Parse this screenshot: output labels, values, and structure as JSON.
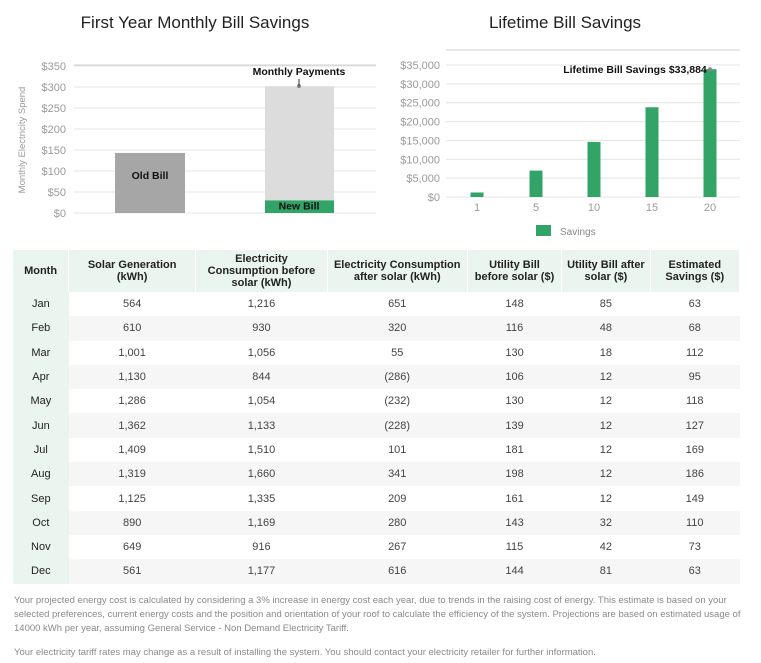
{
  "charts": {
    "left_title": "First Year Monthly Bill Savings",
    "right_title": "Lifetime Bill Savings"
  },
  "chart_data": [
    {
      "type": "bar",
      "title": "First Year Monthly Bill Savings",
      "ylabel": "Monthly Electricity Spend",
      "ylim": [
        0,
        350
      ],
      "yticks": [
        "$0",
        "$50",
        "$100",
        "$150",
        "$200",
        "$250",
        "$300",
        "$350"
      ],
      "ytick_values": [
        0,
        50,
        100,
        150,
        200,
        250,
        300,
        350
      ],
      "grid": true,
      "categories": [
        "Old Bill",
        "New Bill"
      ],
      "values": [
        143,
        30
      ],
      "stacked_top": {
        "category": "New Bill",
        "value": 302
      },
      "annotations": [
        {
          "text": "Monthly Payments",
          "x": "New Bill",
          "y": 302
        }
      ],
      "colors": {
        "old_bill": "#a6a6a6",
        "new_bill": "#33a467",
        "payments": "#dcdcdc"
      }
    },
    {
      "type": "bar",
      "title": "Lifetime Bill Savings",
      "ylim": [
        0,
        35000
      ],
      "yticks": [
        "$0",
        "$5,000",
        "$10,000",
        "$15,000",
        "$20,000",
        "$25,000",
        "$30,000",
        "$35,000"
      ],
      "ytick_values": [
        0,
        5000,
        10000,
        15000,
        20000,
        25000,
        30000,
        35000
      ],
      "grid": true,
      "categories": [
        "1",
        "5",
        "10",
        "15",
        "20"
      ],
      "series": [
        {
          "name": "Savings",
          "values": [
            1200,
            7000,
            14600,
            23800,
            33884
          ]
        }
      ],
      "annotations": [
        {
          "text": "Lifetime Bill Savings $33,884",
          "x": "20",
          "y": 33884
        }
      ],
      "legend": "bottom",
      "color": "#33a467"
    },
    {
      "type": "table",
      "headers": [
        "Month",
        "Solar Generation (kWh)",
        "Electricity Consumption before solar (kWh)",
        "Electricity Consumption after solar (kWh)",
        "Utility Bill before solar ($)",
        "Utility Bill after solar ($)",
        "Estimated Savings ($)"
      ],
      "rows": [
        [
          "Jan",
          "564",
          "1,216",
          "651",
          "148",
          "85",
          "63"
        ],
        [
          "Feb",
          "610",
          "930",
          "320",
          "116",
          "48",
          "68"
        ],
        [
          "Mar",
          "1,001",
          "1,056",
          "55",
          "130",
          "18",
          "112"
        ],
        [
          "Apr",
          "1,130",
          "844",
          "(286)",
          "106",
          "12",
          "95"
        ],
        [
          "May",
          "1,286",
          "1,054",
          "(232)",
          "130",
          "12",
          "118"
        ],
        [
          "Jun",
          "1,362",
          "1,133",
          "(228)",
          "139",
          "12",
          "127"
        ],
        [
          "Jul",
          "1,409",
          "1,510",
          "101",
          "181",
          "12",
          "169"
        ],
        [
          "Aug",
          "1,319",
          "1,660",
          "341",
          "198",
          "12",
          "186"
        ],
        [
          "Sep",
          "1,125",
          "1,335",
          "209",
          "161",
          "12",
          "149"
        ],
        [
          "Oct",
          "890",
          "1,169",
          "280",
          "143",
          "32",
          "110"
        ],
        [
          "Nov",
          "649",
          "916",
          "267",
          "115",
          "42",
          "73"
        ],
        [
          "Dec",
          "561",
          "1,177",
          "616",
          "144",
          "81",
          "63"
        ]
      ]
    }
  ],
  "footnotes": {
    "projection": "Your projected energy cost is calculated by considering a 3% increase in energy cost each year, due to trends in the raising cost of energy. This estimate is based on your selected preferences, current energy costs and the position and orientation of your roof to calculate the efficiency of the system. Projections are based on estimated usage of 14000 kWh per year, assuming General Service - Non Demand Electricity Tariff.",
    "tariff": "Your electricity tariff rates may change as a result of installing the system. You should contact your electricity retailer for further information."
  }
}
